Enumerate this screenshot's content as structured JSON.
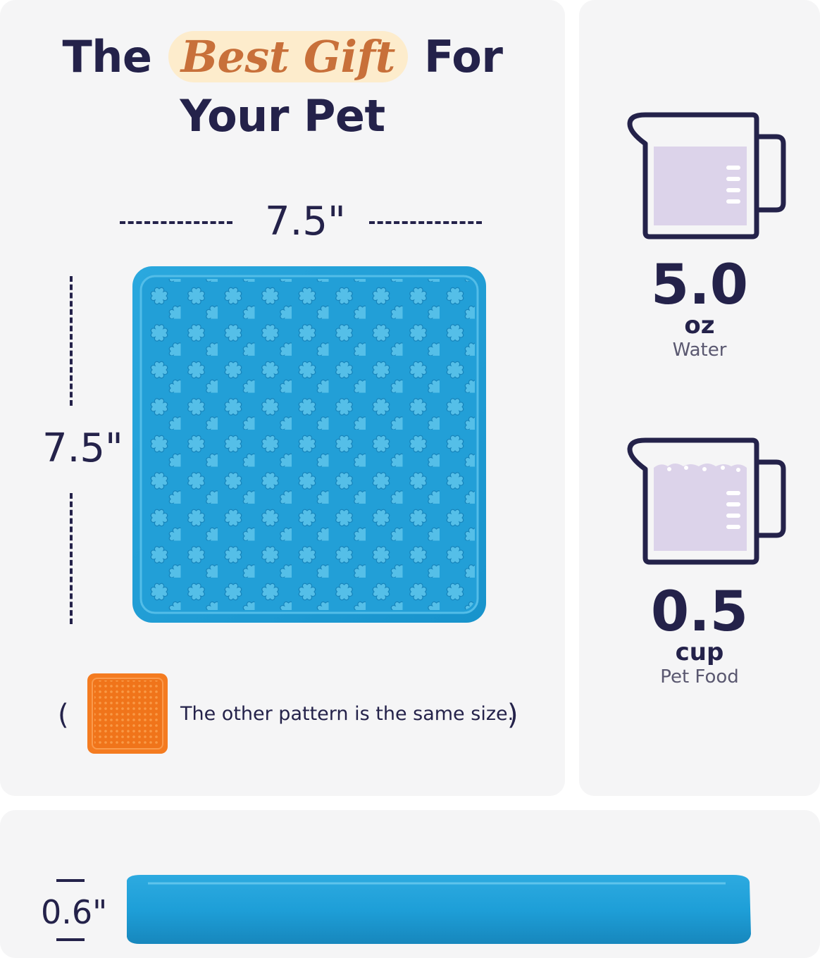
{
  "title": {
    "line1_before": "The",
    "line1_highlight": "Best Gift",
    "line1_after": "For",
    "line2": "Your Pet"
  },
  "dimensions": {
    "width": "7.5\"",
    "length": "7.5\"",
    "height": "0.6\""
  },
  "note": {
    "open_paren": "(",
    "text": "The other pattern is the same size.",
    "close_paren": ")"
  },
  "capacity": [
    {
      "value": "5.0",
      "unit": "oz",
      "label": "Water"
    },
    {
      "value": "0.5",
      "unit": "cup",
      "label": "Pet Food"
    }
  ],
  "colors": {
    "navy": "#24224a",
    "mat_blue": "#1e9fd8",
    "mat_orange": "#f47b20",
    "highlight_bg": "#fdeccc",
    "highlight_text": "#c8703a",
    "liquid_lavender": "#dcd3ea",
    "panel_bg": "#f5f5f6"
  },
  "icons": [
    "measuring-jug-water-icon",
    "measuring-jug-food-icon"
  ]
}
